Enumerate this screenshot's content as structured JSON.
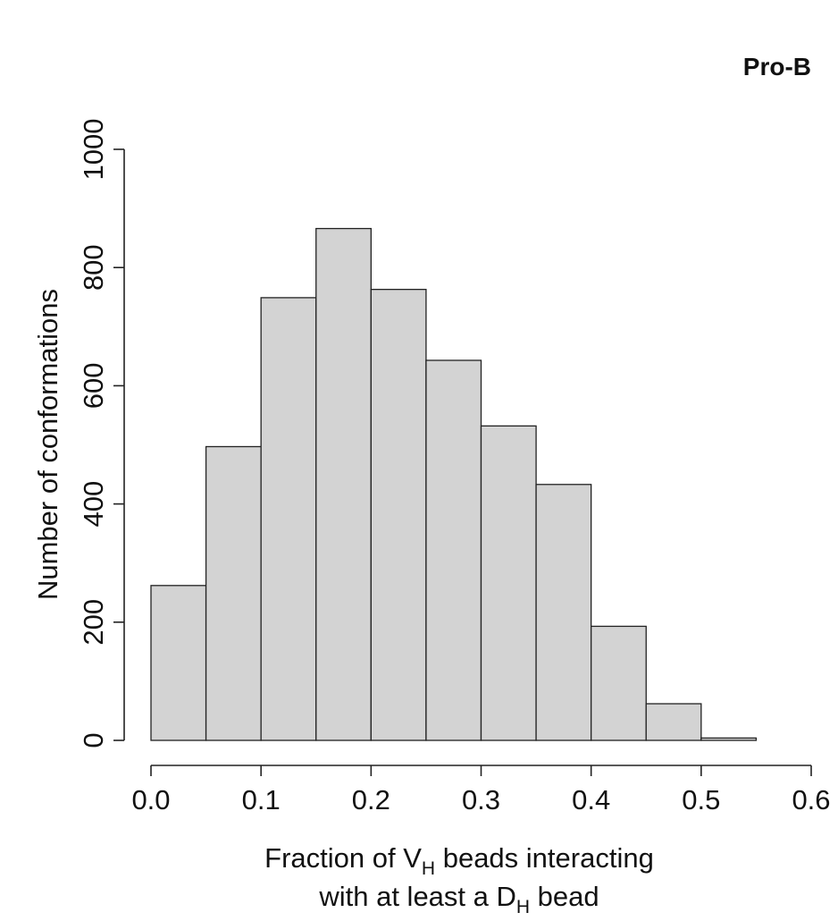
{
  "chart_data": {
    "type": "bar",
    "subtype": "histogram",
    "title": "Pro-B",
    "xlabel": {
      "line1_prefix": "Fraction of V",
      "line1_sub": "H",
      "line1_suffix": " beads interacting",
      "line2_prefix": "with at least a D",
      "line2_sub": "H",
      "line2_suffix": " bead"
    },
    "ylabel": "Number of conformations",
    "bin_edges": [
      0.0,
      0.05,
      0.1,
      0.15,
      0.2,
      0.25,
      0.3,
      0.35,
      0.4,
      0.45,
      0.5,
      0.55
    ],
    "values": [
      262,
      497,
      749,
      866,
      763,
      643,
      532,
      433,
      193,
      62,
      4
    ],
    "xlim": [
      0.0,
      0.6
    ],
    "ylim": [
      0,
      1000
    ],
    "xticks": [
      "0.0",
      "0.1",
      "0.2",
      "0.3",
      "0.4",
      "0.5",
      "0.6"
    ],
    "yticks": [
      "0",
      "200",
      "400",
      "600",
      "800",
      "1000"
    ],
    "xtick_values": [
      0.0,
      0.1,
      0.2,
      0.3,
      0.4,
      0.5,
      0.6
    ],
    "ytick_values": [
      0,
      200,
      400,
      600,
      800,
      1000
    ],
    "bar_color": "#d3d3d3",
    "edge_color": "#222222",
    "grid": false,
    "legend": "none"
  }
}
